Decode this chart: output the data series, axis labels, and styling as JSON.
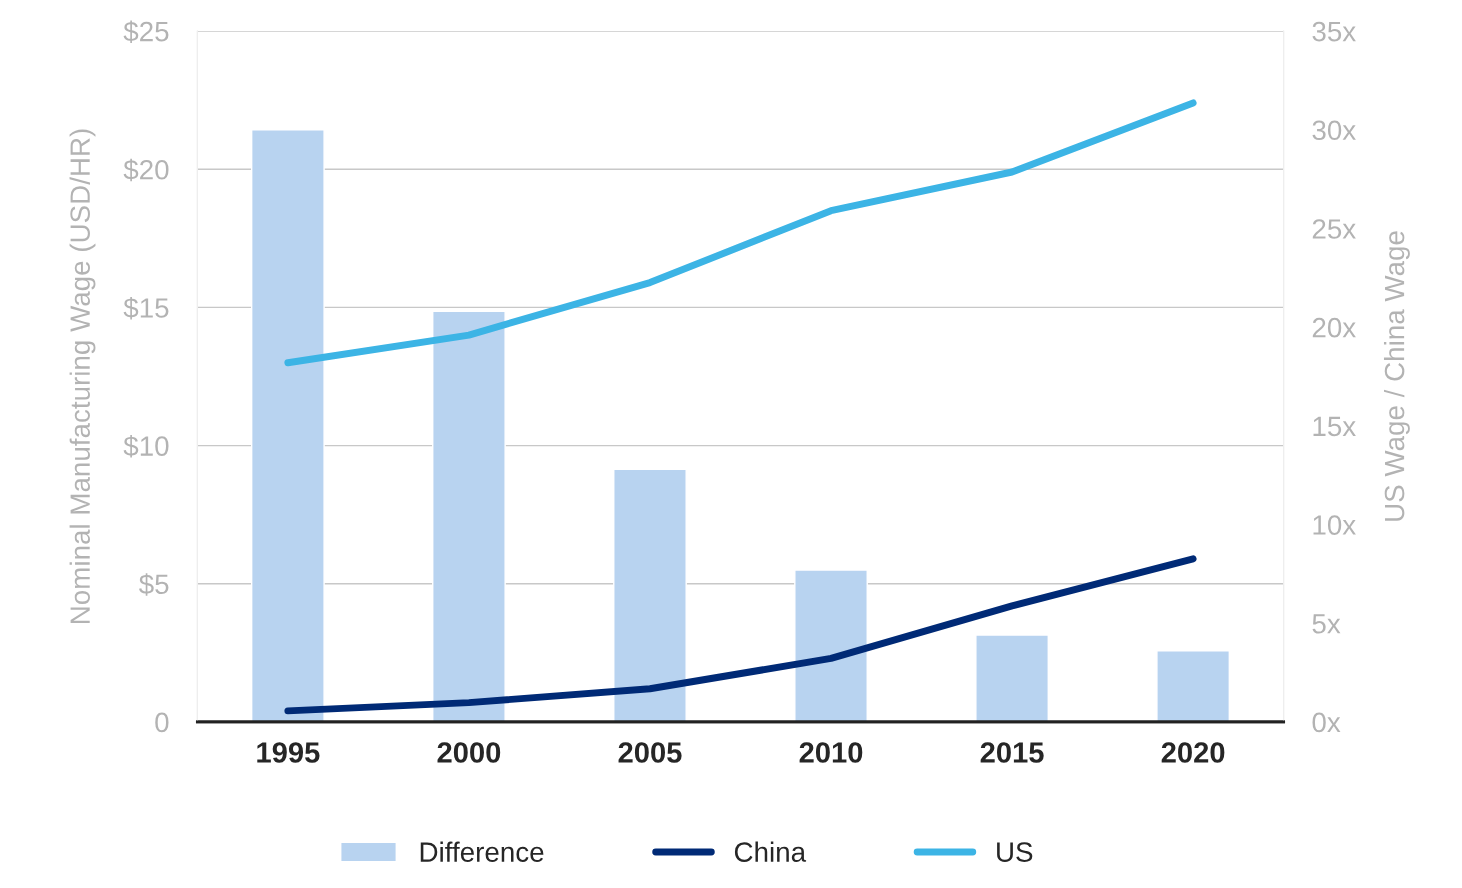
{
  "chart_data": {
    "type": "bar",
    "ylabel": "Nominal Manufacturing Wage (USD/HR)",
    "y2label": "US Wage / China Wage",
    "categories": [
      "1995",
      "2000",
      "2005",
      "2010",
      "2015",
      "2020"
    ],
    "series": [
      {
        "name": "Difference",
        "axis": "y2",
        "color": "#b8d3f0",
        "values": [
          30.0,
          20.8,
          12.8,
          7.7,
          4.4,
          3.6
        ]
      },
      {
        "name": "China",
        "type": "line",
        "color": "#002a76",
        "values": [
          0.4,
          0.7,
          1.2,
          2.3,
          4.2,
          5.9
        ]
      },
      {
        "name": "US",
        "type": "line",
        "color": "#3cb4e5",
        "values": [
          13.0,
          14.0,
          15.9,
          18.5,
          19.9,
          22.4
        ]
      }
    ],
    "ylim": [
      0,
      25
    ],
    "yticks": [
      {
        "value": 0,
        "label": "0"
      },
      {
        "value": 5,
        "label": "$5"
      },
      {
        "value": 10,
        "label": "$10"
      },
      {
        "value": 15,
        "label": "$15"
      },
      {
        "value": 20,
        "label": "$20"
      },
      {
        "value": 25,
        "label": "$25"
      }
    ],
    "y2lim": [
      0,
      35
    ],
    "y2ticks": [
      {
        "value": 0,
        "label": "0x"
      },
      {
        "value": 5,
        "label": "5x"
      },
      {
        "value": 10,
        "label": "10x"
      },
      {
        "value": 15,
        "label": "15x"
      },
      {
        "value": 20,
        "label": "20x"
      },
      {
        "value": 25,
        "label": "25x"
      },
      {
        "value": 30,
        "label": "30x"
      },
      {
        "value": 35,
        "label": "35x"
      }
    ],
    "grid": "y",
    "legend": "bottom",
    "marker": "none",
    "line_style": "solid"
  }
}
